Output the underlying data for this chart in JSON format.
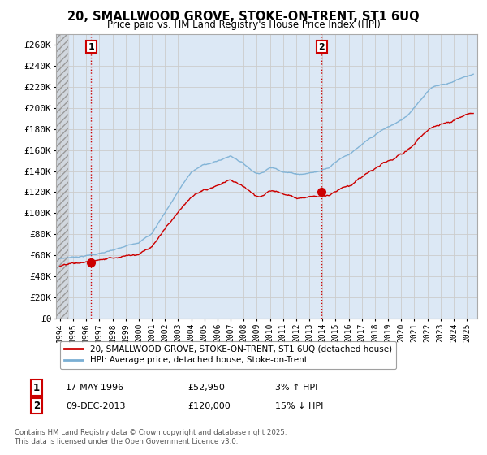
{
  "title": "20, SMALLWOOD GROVE, STOKE-ON-TRENT, ST1 6UQ",
  "subtitle": "Price paid vs. HM Land Registry's House Price Index (HPI)",
  "ylabel_ticks": [
    "£0",
    "£20K",
    "£40K",
    "£60K",
    "£80K",
    "£100K",
    "£120K",
    "£140K",
    "£160K",
    "£180K",
    "£200K",
    "£220K",
    "£240K",
    "£260K"
  ],
  "ytick_values": [
    0,
    20000,
    40000,
    60000,
    80000,
    100000,
    120000,
    140000,
    160000,
    180000,
    200000,
    220000,
    240000,
    260000
  ],
  "ylim": [
    0,
    270000
  ],
  "xlim_start": 1993.7,
  "xlim_end": 2025.8,
  "sale1": {
    "date": 1996.375,
    "price": 52950,
    "label": "1"
  },
  "sale2": {
    "date": 2013.94,
    "price": 120000,
    "label": "2"
  },
  "legend_line1": "20, SMALLWOOD GROVE, STOKE-ON-TRENT, ST1 6UQ (detached house)",
  "legend_line2": "HPI: Average price, detached house, Stoke-on-Trent",
  "annotation1": [
    "1",
    "17-MAY-1996",
    "£52,950",
    "3% ↑ HPI"
  ],
  "annotation2": [
    "2",
    "09-DEC-2013",
    "£120,000",
    "15% ↓ HPI"
  ],
  "footer": "Contains HM Land Registry data © Crown copyright and database right 2025.\nThis data is licensed under the Open Government Licence v3.0.",
  "line_color_house": "#cc0000",
  "line_color_hpi": "#7aafd4",
  "grid_color": "#cccccc",
  "bg_color": "#dce8f5",
  "hatch_color": "#bbbbbb"
}
